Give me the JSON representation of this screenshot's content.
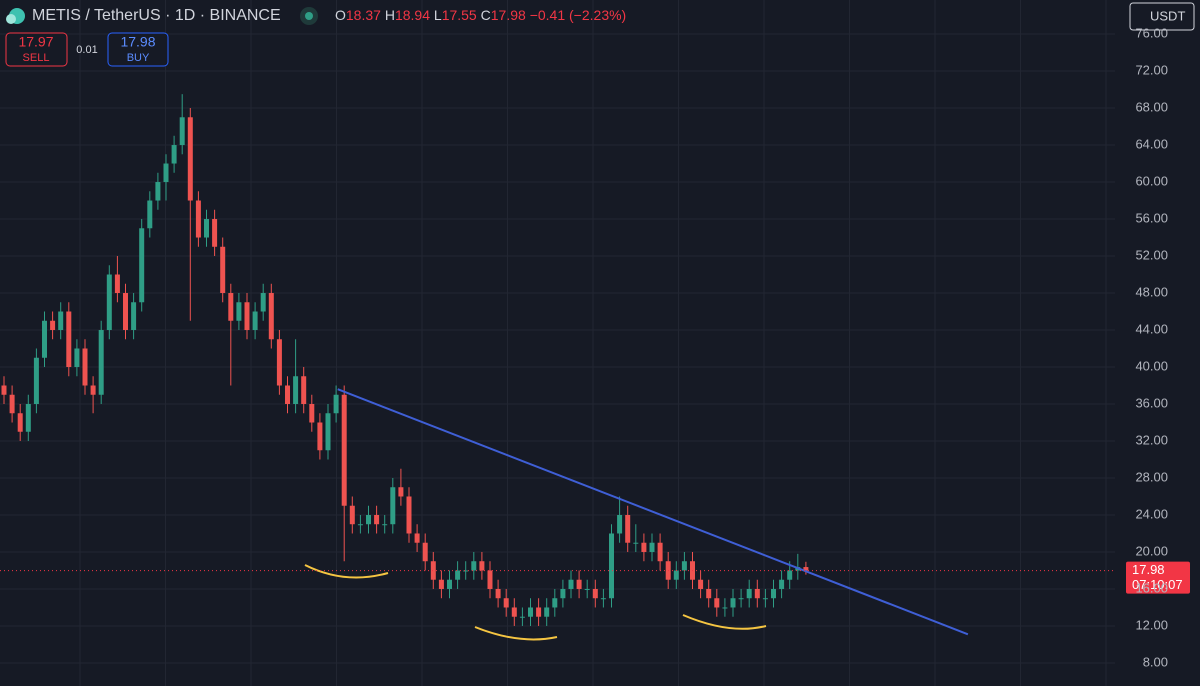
{
  "chart_data": {
    "type": "candlestick",
    "symbol": "METIS / TetherUS · 1D · BINANCE",
    "legend": {
      "open_label": "O",
      "open": 18.37,
      "high_label": "H",
      "high": 18.94,
      "low_label": "L",
      "low": 17.55,
      "close_label": "C",
      "close": 17.98,
      "change": {
        "value": -0.41,
        "label": "−0.41"
      },
      "change_pct": {
        "value": -2.23,
        "label": "(−2.23%)"
      }
    },
    "sell": {
      "price": 17.97,
      "label": "SELL"
    },
    "spread": 0.01,
    "buy": {
      "price": 17.98,
      "label": "BUY"
    },
    "currency": "USDT",
    "last_price": {
      "value": 17.98,
      "countdown": "07:10:07"
    },
    "up_color": "#2f9e86",
    "down_color": "#ef5350",
    "ylim": [
      5.51,
      79.68
    ],
    "yticks": [
      {
        "value": 8,
        "label": "8.00"
      },
      {
        "value": 12,
        "label": "12.00"
      },
      {
        "value": 16,
        "label": "16.00"
      },
      {
        "value": 20,
        "label": "20.00"
      },
      {
        "value": 24,
        "label": "24.00"
      },
      {
        "value": 28,
        "label": "28.00"
      },
      {
        "value": 32,
        "label": "32.00"
      },
      {
        "value": 36,
        "label": "36.00"
      },
      {
        "value": 40,
        "label": "40.00"
      },
      {
        "value": 44,
        "label": "44.00"
      },
      {
        "value": 48,
        "label": "48.00"
      },
      {
        "value": 52,
        "label": "52.00"
      },
      {
        "value": 56,
        "label": "56.00"
      },
      {
        "value": 60,
        "label": "60.00"
      },
      {
        "value": 64,
        "label": "64.00"
      },
      {
        "value": 68,
        "label": "68.00"
      },
      {
        "value": 72,
        "label": "72.00"
      },
      {
        "value": 76,
        "label": "76.00"
      }
    ],
    "trendline": {
      "color": "#3f5fd6",
      "x": [
        41.2,
        119
      ],
      "y": [
        37.6,
        11.1
      ]
    },
    "ohlc": [
      [
        38,
        39,
        36,
        37
      ],
      [
        37,
        38,
        34,
        35
      ],
      [
        35,
        36,
        32,
        33
      ],
      [
        33,
        37,
        32,
        36
      ],
      [
        36,
        42,
        35,
        41
      ],
      [
        41,
        46,
        40,
        45
      ],
      [
        45,
        46,
        43,
        44
      ],
      [
        44,
        47,
        43,
        46
      ],
      [
        46,
        47,
        39,
        40
      ],
      [
        40,
        43,
        39,
        42
      ],
      [
        42,
        43,
        37,
        38
      ],
      [
        38,
        39,
        35,
        37
      ],
      [
        37,
        45,
        36,
        44
      ],
      [
        44,
        51,
        43,
        50
      ],
      [
        50,
        52,
        47,
        48
      ],
      [
        48,
        49,
        43,
        44
      ],
      [
        44,
        48,
        43,
        47
      ],
      [
        47,
        56,
        46,
        55
      ],
      [
        55,
        59,
        54,
        58
      ],
      [
        58,
        61,
        57,
        60
      ],
      [
        60,
        63,
        58,
        62
      ],
      [
        62,
        65,
        61,
        64
      ],
      [
        64,
        69.5,
        63,
        67
      ],
      [
        67,
        68,
        45,
        58
      ],
      [
        58,
        59,
        53,
        54
      ],
      [
        54,
        57,
        53,
        56
      ],
      [
        56,
        57,
        52,
        53
      ],
      [
        53,
        54,
        47,
        48
      ],
      [
        48,
        49,
        38,
        45
      ],
      [
        45,
        48,
        44,
        47
      ],
      [
        47,
        48,
        43,
        44
      ],
      [
        44,
        47,
        43,
        46
      ],
      [
        46,
        49,
        45,
        48
      ],
      [
        48,
        49,
        42,
        43
      ],
      [
        43,
        44,
        37,
        38
      ],
      [
        38,
        39,
        35,
        36
      ],
      [
        36,
        43,
        35,
        39
      ],
      [
        39,
        40,
        35,
        36
      ],
      [
        36,
        37,
        33,
        34
      ],
      [
        34,
        35,
        30,
        31
      ],
      [
        31,
        36,
        30,
        35
      ],
      [
        35,
        38,
        34,
        37
      ],
      [
        37,
        38,
        19,
        25
      ],
      [
        25,
        26,
        22,
        23
      ],
      [
        23,
        24,
        22,
        23
      ],
      [
        23,
        25,
        22,
        24
      ],
      [
        24,
        25,
        22,
        23
      ],
      [
        23,
        24,
        22,
        23
      ],
      [
        23,
        28,
        22,
        27
      ],
      [
        27,
        29,
        25,
        26
      ],
      [
        26,
        27,
        21,
        22
      ],
      [
        22,
        23,
        20,
        21
      ],
      [
        21,
        22,
        18,
        19
      ],
      [
        19,
        20,
        16,
        17
      ],
      [
        17,
        18,
        15,
        16
      ],
      [
        16,
        18,
        15,
        17
      ],
      [
        17,
        19,
        16,
        18
      ],
      [
        18,
        19,
        17,
        18
      ],
      [
        18,
        20,
        17,
        19
      ],
      [
        19,
        20,
        17,
        18
      ],
      [
        18,
        19,
        15,
        16
      ],
      [
        16,
        17,
        14,
        15
      ],
      [
        15,
        16,
        13,
        14
      ],
      [
        14,
        15,
        12,
        13
      ],
      [
        13,
        14,
        12,
        13
      ],
      [
        13,
        15,
        12,
        14
      ],
      [
        14,
        15,
        12,
        13
      ],
      [
        13,
        15,
        12,
        14
      ],
      [
        14,
        16,
        13,
        15
      ],
      [
        15,
        17,
        14,
        16
      ],
      [
        16,
        18,
        15,
        17
      ],
      [
        17,
        18,
        15,
        16
      ],
      [
        16,
        17,
        15,
        16
      ],
      [
        16,
        17,
        14,
        15
      ],
      [
        15,
        16,
        14,
        15
      ],
      [
        15,
        23,
        14,
        22
      ],
      [
        22,
        26,
        21,
        24
      ],
      [
        24,
        25,
        20,
        21
      ],
      [
        21,
        23,
        20,
        21
      ],
      [
        21,
        22,
        19,
        20
      ],
      [
        20,
        22,
        19,
        21
      ],
      [
        21,
        22,
        18,
        19
      ],
      [
        19,
        20,
        16,
        17
      ],
      [
        17,
        19,
        16,
        18
      ],
      [
        18,
        20,
        17,
        19
      ],
      [
        19,
        20,
        16,
        17
      ],
      [
        17,
        18,
        15,
        16
      ],
      [
        16,
        17,
        14,
        15
      ],
      [
        15,
        16,
        13,
        14
      ],
      [
        14,
        15,
        13,
        14
      ],
      [
        14,
        16,
        13,
        15
      ],
      [
        15,
        16,
        14,
        15
      ],
      [
        15,
        17,
        14,
        16
      ],
      [
        16,
        17,
        14,
        15
      ],
      [
        15,
        16,
        14,
        15
      ],
      [
        15,
        17,
        14,
        16
      ],
      [
        16,
        18,
        15,
        17
      ],
      [
        17,
        19,
        16,
        18
      ],
      [
        18,
        19.8,
        17,
        18.37
      ],
      [
        18.37,
        18.94,
        17.55,
        17.98
      ]
    ]
  }
}
